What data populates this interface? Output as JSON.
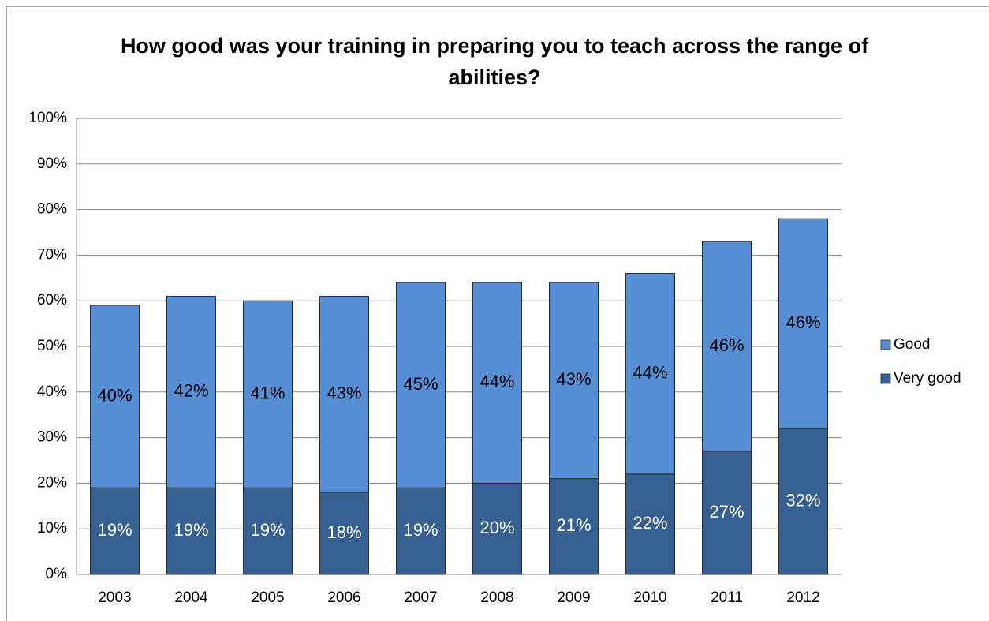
{
  "chart_data": {
    "type": "stacked_bar",
    "title": "How good was your training in preparing you to teach across the range of abilities?",
    "categories": [
      "2003",
      "2004",
      "2005",
      "2006",
      "2007",
      "2008",
      "2009",
      "2010",
      "2011",
      "2012"
    ],
    "series": [
      {
        "name": "Very good",
        "color": "#376092",
        "values": [
          19,
          19,
          19,
          18,
          19,
          20,
          21,
          22,
          27,
          32
        ],
        "value_labels": [
          "19%",
          "19%",
          "19%",
          "18%",
          "19%",
          "20%",
          "21%",
          "22%",
          "27%",
          "32%"
        ]
      },
      {
        "name": "Good",
        "color": "#558ed5",
        "values": [
          40,
          42,
          41,
          43,
          45,
          44,
          43,
          44,
          46,
          46
        ],
        "value_labels": [
          "40%",
          "42%",
          "41%",
          "43%",
          "45%",
          "44%",
          "43%",
          "44%",
          "46%",
          "46%"
        ]
      }
    ],
    "ylim": [
      0,
      100
    ],
    "yticks": [
      {
        "value": 0,
        "label": "0%"
      },
      {
        "value": 10,
        "label": "10%"
      },
      {
        "value": 20,
        "label": "20%"
      },
      {
        "value": 30,
        "label": "30%"
      },
      {
        "value": 40,
        "label": "40%"
      },
      {
        "value": 50,
        "label": "50%"
      },
      {
        "value": 60,
        "label": "60%"
      },
      {
        "value": 70,
        "label": "70%"
      },
      {
        "value": 80,
        "label": "80%"
      },
      {
        "value": 90,
        "label": "90%"
      },
      {
        "value": 100,
        "label": "100%"
      }
    ],
    "grid": true,
    "legend": "right"
  }
}
